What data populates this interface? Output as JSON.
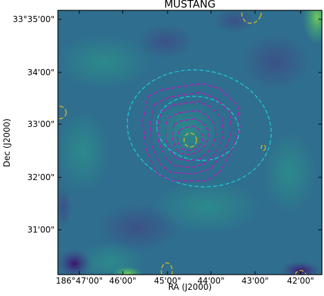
{
  "chart_data": {
    "type": "heatmap",
    "title": "MUSTANG",
    "xlabel": "RA (J2000)",
    "ylabel": "Dec (J2000)",
    "x_tick_labels": [
      "186°47'00\"",
      "46'00\"",
      "45'00\"",
      "44'00\"",
      "43'00\"",
      "42'00\""
    ],
    "y_tick_labels": [
      "33°35'00\"",
      "34'00\"",
      "33'00\"",
      "32'00\"",
      "31'00\""
    ],
    "colormap": "viridis",
    "grid": false,
    "contour_sets": [
      {
        "color": "#b01fb8",
        "style": "dashed",
        "count": 6
      },
      {
        "color": "#1fbfcf",
        "style": "dashed",
        "count": 2
      },
      {
        "color": "#c9b32b",
        "style": "dashed",
        "count": 6
      }
    ]
  }
}
